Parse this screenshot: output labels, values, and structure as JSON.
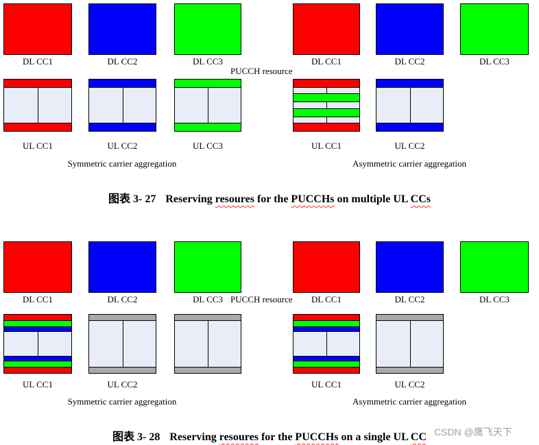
{
  "colors": {
    "red": "#ff0000",
    "blue": "#0000ff",
    "green": "#00ff00",
    "light": "#e8edf8",
    "gray": "#a9a9a9",
    "squiggle": "#ff2a2a",
    "watermark": "#9e9ea3"
  },
  "fig1": {
    "dl": [
      "DL CC1",
      "DL CC2",
      "DL CC3",
      "DL CC1",
      "DL CC2",
      "DL CC3"
    ],
    "ul": [
      "UL CC1",
      "UL CC2",
      "UL CC3",
      "UL CC1",
      "UL CC2"
    ],
    "pucch": "PUCCH resource",
    "sym": "Symmetric carrier aggregation",
    "asym": "Asymmetric carrier aggregation",
    "cap": {
      "zh": "图表  3- 27",
      "t1": "Reserving ",
      "w1": "resoures",
      "t2": " for the ",
      "w2": "PUCCHs",
      "t3": " on multiple UL ",
      "w3": "CCs"
    }
  },
  "fig2": {
    "dl": [
      "DL CC1",
      "DL CC2",
      "DL CC3",
      "DL CC1",
      "DL CC2",
      "DL CC3"
    ],
    "ul": [
      "UL CC1",
      "UL CC2",
      "UL CC1",
      "UL CC2"
    ],
    "pucch": "PUCCH resource",
    "sym": "Symmetric carrier aggregation",
    "asym": "Asymmetric carrier aggregation",
    "cap": {
      "zh": "图表  3- 28",
      "t1": "Reserving ",
      "w1": "resoures",
      "t2": " for the ",
      "w2": "PUCCHs",
      "t3": " on a single UL ",
      "w3": "CC"
    }
  },
  "watermark": "CSDN @鹰飞天下"
}
